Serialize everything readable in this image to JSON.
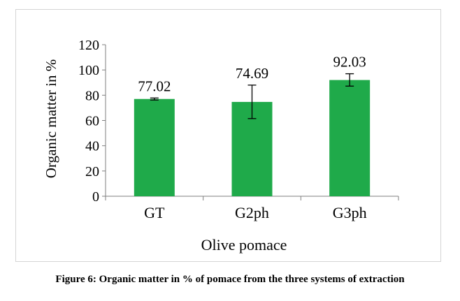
{
  "chart_data": {
    "type": "bar",
    "categories": [
      "GT",
      "G2ph",
      "G3ph"
    ],
    "values": [
      77.02,
      74.69,
      92.03
    ],
    "data_labels": [
      "77.02",
      "74.69",
      "92.03"
    ],
    "error_bars": [
      {
        "low": 76.2,
        "high": 77.8
      },
      {
        "low": 61.5,
        "high": 88.0
      },
      {
        "low": 87.2,
        "high": 97.0
      }
    ],
    "ylim": [
      0,
      120
    ],
    "yticks": [
      0,
      20,
      40,
      60,
      80,
      100,
      120
    ],
    "title": "",
    "xlabel": "Olive pomace",
    "ylabel": "Organic matter in %",
    "bar_color": "#1faa4a",
    "grid": false,
    "legend": "none"
  },
  "caption": "Figure 6: Organic matter in % of pomace from the three systems of extraction"
}
